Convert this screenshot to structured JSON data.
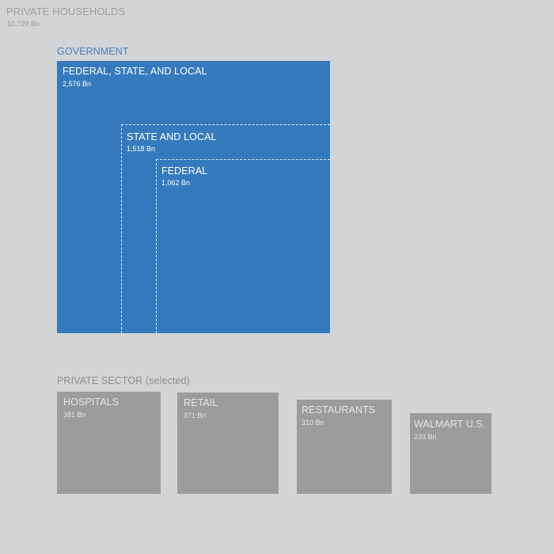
{
  "chart_data": {
    "type": "treemap-nested-squares",
    "households": {
      "label": "PRIVATE HOUSEHOLDS",
      "value_label": "10,729 Bn",
      "value": 10729
    },
    "government": {
      "section_title": "GOVERNMENT",
      "items": [
        {
          "label": "FEDERAL, STATE, AND LOCAL",
          "value_label": "2,576 Bn",
          "value": 2576
        },
        {
          "label": "STATE AND LOCAL",
          "value_label": "1,518 Bn",
          "value": 1518
        },
        {
          "label": "FEDERAL",
          "value_label": "1,062 Bn",
          "value": 1062
        }
      ]
    },
    "private_sector": {
      "section_title": "PRIVATE SECTOR (selected)",
      "items": [
        {
          "label": "HOSPITALS",
          "value_label": "381 Bn",
          "value": 381
        },
        {
          "label": "RETAIL",
          "value_label": "371 Bn",
          "value": 371
        },
        {
          "label": "RESTAURANTS",
          "value_label": "310 Bn",
          "value": 310
        },
        {
          "label": "WALMART U.S.",
          "value_label": "233 Bn",
          "value": 233
        }
      ]
    },
    "colors": {
      "background": "#d3d4d6",
      "government": "#357abd",
      "government_title": "#4a82bf",
      "private": "#9c9c9e",
      "muted_text": "#9c9c9e"
    }
  }
}
